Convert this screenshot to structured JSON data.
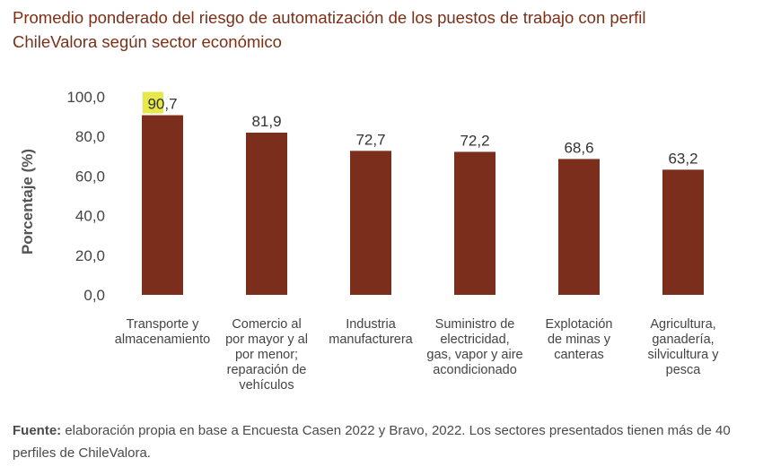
{
  "chart_data": {
    "type": "bar",
    "title": "Promedio ponderado del riesgo de automatización de los puestos de trabajo con perfil ChileValora según sector económico",
    "ylabel": "Porcentaje (%)",
    "xlabel": "",
    "ylim": [
      0,
      100
    ],
    "yticks": [
      "0,0",
      "20,0",
      "40,0",
      "60,0",
      "80,0",
      "100,0"
    ],
    "categories": [
      [
        "Transporte y",
        "almacenamiento"
      ],
      [
        "Comercio al",
        "por mayor y al",
        "por menor;",
        "reparación de",
        "vehículos"
      ],
      [
        "Industria",
        "manufacturera"
      ],
      [
        "Suministro de",
        "electricidad,",
        "gas, vapor y aire",
        "acondicionado"
      ],
      [
        "Explotación",
        "de minas y",
        "canteras"
      ],
      [
        "Agricultura,",
        "ganadería,",
        "silvicultura y",
        "pesca"
      ]
    ],
    "values": [
      90.7,
      81.9,
      72.7,
      72.2,
      68.6,
      63.2
    ],
    "value_labels": [
      "90,7",
      "81,9",
      "72,7",
      "72,2",
      "68,6",
      "63,2"
    ],
    "highlight": {
      "bar_index": 0,
      "text": "90",
      "color": "#e8e84a"
    },
    "bar_color": "#7b2e1c",
    "grid": false,
    "legend": "none"
  },
  "source": {
    "label": "Fuente:",
    "text": " elaboración propia en base a Encuesta Casen 2022 y Bravo, 2022. Los sectores presentados tienen más de 40 perfiles de ChileValora."
  }
}
